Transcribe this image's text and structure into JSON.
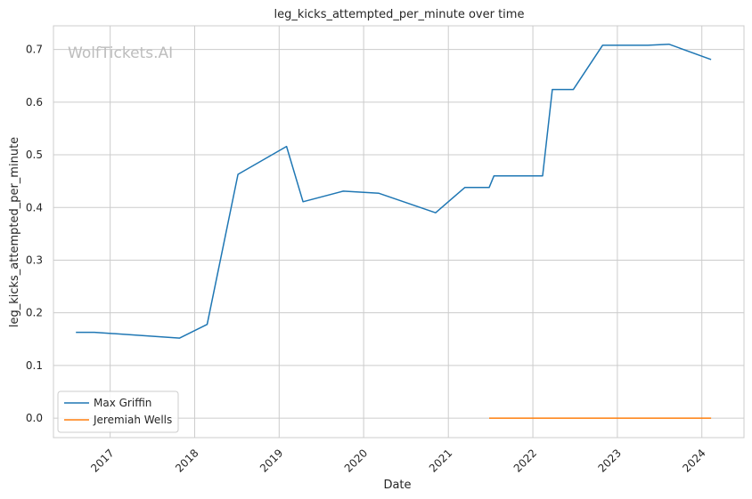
{
  "watermark": "WolfTickets.AI",
  "chart_data": {
    "type": "line",
    "title": "leg_kicks_attempted_per_minute over time",
    "xlabel": "Date",
    "ylabel": "leg_kicks_attempted_per_minute",
    "x_ticks": [
      "2017",
      "2018",
      "2019",
      "2020",
      "2021",
      "2022",
      "2023",
      "2024"
    ],
    "y_ticks": [
      "0.0",
      "0.1",
      "0.2",
      "0.3",
      "0.4",
      "0.5",
      "0.6",
      "0.7"
    ],
    "xlim": [
      "2016-05-01",
      "2024-07-01"
    ],
    "ylim": [
      -0.037,
      0.745
    ],
    "grid": true,
    "legend_position": "lower-left",
    "series": [
      {
        "name": "Max Griffin",
        "color": "#1f77b4",
        "points": [
          [
            "2016-08-06",
            0.163
          ],
          [
            "2016-10-25",
            0.163
          ],
          [
            "2017-10-28",
            0.152
          ],
          [
            "2018-02-24",
            0.178
          ],
          [
            "2018-07-07",
            0.463
          ],
          [
            "2019-02-02",
            0.516
          ],
          [
            "2019-04-14",
            0.411
          ],
          [
            "2019-10-05",
            0.431
          ],
          [
            "2020-03-07",
            0.427
          ],
          [
            "2020-11-07",
            0.39
          ],
          [
            "2021-03-13",
            0.438
          ],
          [
            "2021-06-26",
            0.438
          ],
          [
            "2021-07-17",
            0.46
          ],
          [
            "2022-02-12",
            0.46
          ],
          [
            "2022-03-26",
            0.624
          ],
          [
            "2022-06-25",
            0.624
          ],
          [
            "2022-10-29",
            0.708
          ],
          [
            "2023-05-13",
            0.708
          ],
          [
            "2023-08-12",
            0.71
          ],
          [
            "2024-02-10",
            0.681
          ]
        ]
      },
      {
        "name": "Jeremiah Wells",
        "color": "#ff7f0e",
        "points": [
          [
            "2021-06-26",
            0.0
          ],
          [
            "2024-02-10",
            0.0
          ]
        ]
      }
    ]
  }
}
